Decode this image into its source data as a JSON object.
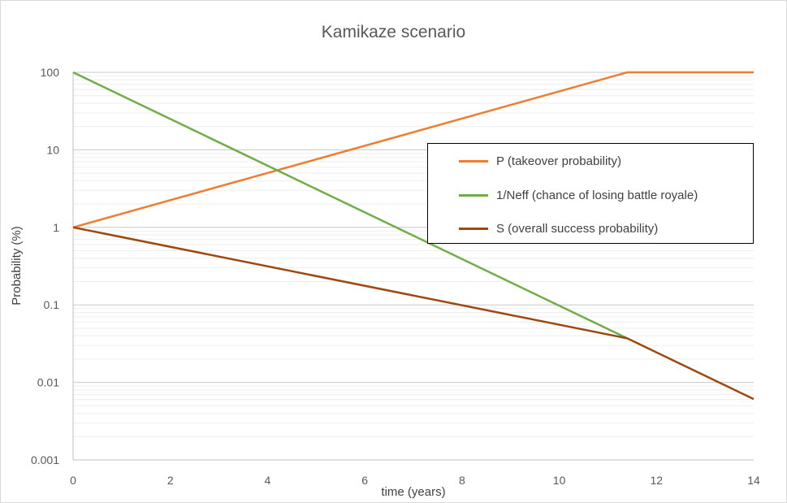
{
  "chart_data": {
    "type": "line",
    "title": "Kamikaze scenario",
    "xlabel": "time (years)",
    "ylabel": "Probability (%)",
    "xlim": [
      0,
      14
    ],
    "ylim": [
      0.001,
      100
    ],
    "yscale": "log",
    "x_ticks": [
      "0",
      "2",
      "4",
      "6",
      "8",
      "10",
      "12",
      "14"
    ],
    "y_ticks": [
      "100",
      "10",
      "1",
      "0.1",
      "0.01",
      "0.001"
    ],
    "grid": true,
    "legend_position": "right",
    "series": [
      {
        "name": "P (takeover probability)",
        "color": "#ED7D31",
        "points": [
          [
            0,
            1
          ],
          [
            11.4,
            100
          ],
          [
            14,
            100
          ]
        ]
      },
      {
        "name": "1/Neff (chance of losing battle royale)",
        "color": "#70AD47",
        "points": [
          [
            0,
            100
          ],
          [
            11.4,
            0.037
          ]
        ]
      },
      {
        "name": "S (overall success probability)",
        "color": "#9E480E",
        "points": [
          [
            0,
            1
          ],
          [
            11.4,
            0.037
          ],
          [
            14,
            0.0061
          ]
        ]
      }
    ]
  }
}
